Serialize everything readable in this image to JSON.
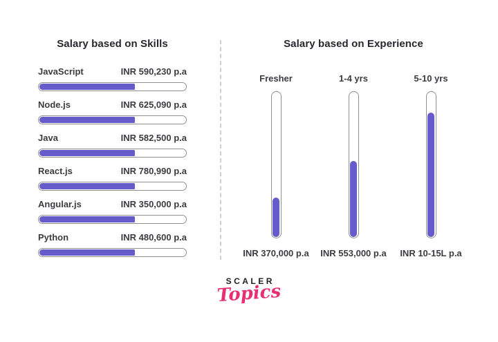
{
  "page": {
    "background": "#ffffff"
  },
  "colors": {
    "bar_fill": "#655bcb",
    "bar_outline": "#8e8e95",
    "title_text": "#26262e",
    "label_text": "#3b3b42",
    "divider": "#cfcfd3",
    "logo_pink": "#e73071",
    "logo_black": "#1e1e24"
  },
  "chart_data": [
    {
      "type": "bar",
      "orientation": "horizontal",
      "title": "Salary based on Skills",
      "categories": [
        "JavaScript",
        "Node.js",
        "Java",
        "React.js",
        "Angular.js",
        "Python"
      ],
      "values_text": [
        "INR 590,230 p.a",
        "INR 625,090 p.a",
        "INR 582,500 p.a",
        "INR 780,990 p.a",
        "INR 350,000 p.a",
        "INR 480,600 p.a"
      ],
      "values_inr_pa": [
        590230,
        625090,
        582500,
        780990,
        350000,
        480600
      ],
      "bar_fill_pct": [
        65,
        65,
        65,
        65,
        65,
        65
      ],
      "legend": "none",
      "grid": "off"
    },
    {
      "type": "bar",
      "orientation": "vertical",
      "title": "Salary based on Experience",
      "categories": [
        "Fresher",
        "1-4 yrs",
        "5-10 yrs"
      ],
      "values_text": [
        "INR 370,000 p.a",
        "INR 553,000 p.a",
        "INR 10-15L p.a"
      ],
      "bar_fill_pct": [
        27,
        52,
        85
      ],
      "legend": "none",
      "grid": "off"
    }
  ],
  "logo": {
    "line1": "SCALER",
    "line2": "Topics"
  }
}
